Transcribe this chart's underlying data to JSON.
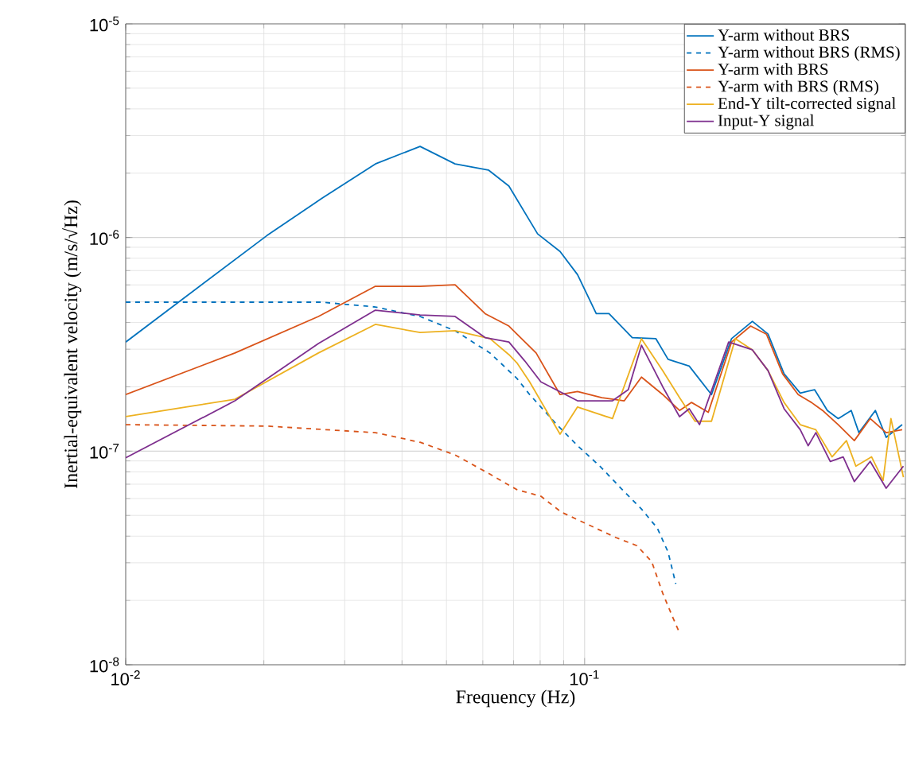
{
  "chart_data": {
    "type": "line",
    "xlabel": "Frequency (Hz)",
    "ylabel": "Inertial-equivalent velocity (m/s/√Hz)",
    "xlim": [
      0.01,
      0.5
    ],
    "ylim": [
      1e-08,
      1e-05
    ],
    "xticks": [
      {
        "value": 0.01,
        "label": "10$^{-2}$"
      },
      {
        "value": 0.1,
        "label": "10$^{-1}$"
      }
    ],
    "yticks": [
      {
        "value": 1e-08,
        "label": "10$^{-8}$"
      },
      {
        "value": 1e-07,
        "label": "10$^{-7}$"
      },
      {
        "value": 1e-06,
        "label": "10$^{-6}$"
      },
      {
        "value": 1e-05,
        "label": "10$^{-5}$"
      }
    ],
    "log": "xy",
    "grid": true,
    "legend": "top right",
    "marker": "none",
    "series": [
      {
        "name": "Y-arm without BRS",
        "color": "#0072bd",
        "line_style": "solid",
        "x": [
          0.01,
          0.0203,
          0.0267,
          0.035,
          0.0438,
          0.0522,
          0.0617,
          0.0684,
          0.079,
          0.0884,
          0.0965,
          0.106,
          0.113,
          0.127,
          0.143,
          0.152,
          0.169,
          0.189,
          0.209,
          0.232,
          0.251,
          0.272,
          0.295,
          0.317,
          0.338,
          0.357,
          0.381,
          0.396,
          0.43,
          0.454,
          0.492
        ],
        "values": [
          3.24e-07,
          1.02e-06,
          1.52e-06,
          2.21e-06,
          2.67e-06,
          2.21e-06,
          2.07e-06,
          1.74e-06,
          1.04e-06,
          8.6e-07,
          6.7e-07,
          4.4e-07,
          4.4e-07,
          3.4e-07,
          3.36e-07,
          2.69e-07,
          2.5e-07,
          1.84e-07,
          3.36e-07,
          4.05e-07,
          3.53e-07,
          2.3e-07,
          1.87e-07,
          1.94e-07,
          1.55e-07,
          1.42e-07,
          1.55e-07,
          1.22e-07,
          1.55e-07,
          1.16e-07,
          1.33e-07
        ]
      },
      {
        "name": "Y-arm without BRS (RMS)",
        "color": "#0072bd",
        "line_style": "dashed",
        "x": [
          0.01,
          0.0203,
          0.0267,
          0.035,
          0.0438,
          0.0522,
          0.0622,
          0.0712,
          0.0759,
          0.087,
          0.0965,
          0.108,
          0.12,
          0.133,
          0.144,
          0.152,
          0.158
        ],
        "values": [
          4.98e-07,
          4.98e-07,
          4.98e-07,
          4.73e-07,
          4.27e-07,
          3.66e-07,
          2.88e-07,
          2.19e-07,
          1.84e-07,
          1.33e-07,
          1.06e-07,
          8.5e-08,
          6.7e-08,
          5.36e-08,
          4.36e-08,
          3.37e-08,
          2.39e-08
        ]
      },
      {
        "name": "Y-arm with BRS",
        "color": "#d95319",
        "line_style": "solid",
        "x": [
          0.01,
          0.0173,
          0.0263,
          0.035,
          0.0438,
          0.0522,
          0.0607,
          0.0684,
          0.0712,
          0.0784,
          0.0884,
          0.0965,
          0.109,
          0.122,
          0.133,
          0.148,
          0.161,
          0.171,
          0.186,
          0.209,
          0.23,
          0.249,
          0.27,
          0.292,
          0.312,
          0.33,
          0.357,
          0.387,
          0.419,
          0.454,
          0.492
        ],
        "values": [
          1.84e-07,
          2.88e-07,
          4.27e-07,
          5.91e-07,
          5.91e-07,
          6.01e-07,
          4.4e-07,
          3.85e-07,
          3.53e-07,
          2.88e-07,
          1.84e-07,
          1.9e-07,
          1.78e-07,
          1.72e-07,
          2.22e-07,
          1.84e-07,
          1.55e-07,
          1.69e-07,
          1.52e-07,
          3.24e-07,
          3.85e-07,
          3.53e-07,
          2.3e-07,
          1.84e-07,
          1.69e-07,
          1.55e-07,
          1.33e-07,
          1.12e-07,
          1.42e-07,
          1.22e-07,
          1.26e-07
        ]
      },
      {
        "name": "Y-arm with BRS (RMS)",
        "color": "#d95319",
        "line_style": "dashed",
        "x": [
          0.01,
          0.0203,
          0.035,
          0.0438,
          0.0522,
          0.0622,
          0.0712,
          0.0803,
          0.089,
          0.102,
          0.117,
          0.13,
          0.14,
          0.148,
          0.155,
          0.161
        ],
        "values": [
          1.33e-07,
          1.31e-07,
          1.22e-07,
          1.1e-07,
          9.6e-08,
          7.8e-08,
          6.6e-08,
          6.15e-08,
          5.18e-08,
          4.52e-08,
          3.94e-08,
          3.61e-08,
          3.04e-08,
          2.16e-08,
          1.7e-08,
          1.41e-08
        ]
      },
      {
        "name": "End-Y tilt-corrected signal",
        "color": "#edb120",
        "line_style": "solid",
        "x": [
          0.01,
          0.0173,
          0.0263,
          0.035,
          0.0438,
          0.0522,
          0.0622,
          0.0684,
          0.0712,
          0.0759,
          0.0884,
          0.0965,
          0.115,
          0.133,
          0.148,
          0.161,
          0.174,
          0.189,
          0.213,
          0.232,
          0.251,
          0.272,
          0.295,
          0.319,
          0.346,
          0.372,
          0.39,
          0.422,
          0.447,
          0.465,
          0.495
        ],
        "values": [
          1.45e-07,
          1.75e-07,
          2.88e-07,
          3.92e-07,
          3.59e-07,
          3.66e-07,
          3.36e-07,
          2.83e-07,
          2.59e-07,
          2.11e-07,
          1.2e-07,
          1.61e-07,
          1.42e-07,
          3.36e-07,
          2.38e-07,
          1.78e-07,
          1.38e-07,
          1.38e-07,
          3.36e-07,
          2.98e-07,
          2.38e-07,
          1.69e-07,
          1.33e-07,
          1.26e-07,
          9.4e-08,
          1.12e-07,
          8.5e-08,
          9.4e-08,
          7.3e-08,
          1.42e-07,
          7.55e-08
        ]
      },
      {
        "name": "Input-Y signal",
        "color": "#7e2f8e",
        "line_style": "solid",
        "x": [
          0.01,
          0.0173,
          0.0263,
          0.035,
          0.0438,
          0.0522,
          0.0607,
          0.0684,
          0.0741,
          0.0803,
          0.0965,
          0.115,
          0.1245,
          0.133,
          0.148,
          0.161,
          0.169,
          0.178,
          0.206,
          0.232,
          0.251,
          0.272,
          0.295,
          0.307,
          0.319,
          0.343,
          0.366,
          0.387,
          0.419,
          0.454,
          0.495
        ],
        "values": [
          9.3e-08,
          1.72e-07,
          3.19e-07,
          4.57e-07,
          4.34e-07,
          4.27e-07,
          3.4e-07,
          3.24e-07,
          2.64e-07,
          2.11e-07,
          1.72e-07,
          1.72e-07,
          1.94e-07,
          3.13e-07,
          2e-07,
          1.45e-07,
          1.58e-07,
          1.33e-07,
          3.24e-07,
          2.98e-07,
          2.38e-07,
          1.58e-07,
          1.26e-07,
          1.06e-07,
          1.22e-07,
          8.95e-08,
          9.4e-08,
          7.2e-08,
          8.95e-08,
          6.7e-08,
          8.5e-08
        ]
      }
    ]
  }
}
